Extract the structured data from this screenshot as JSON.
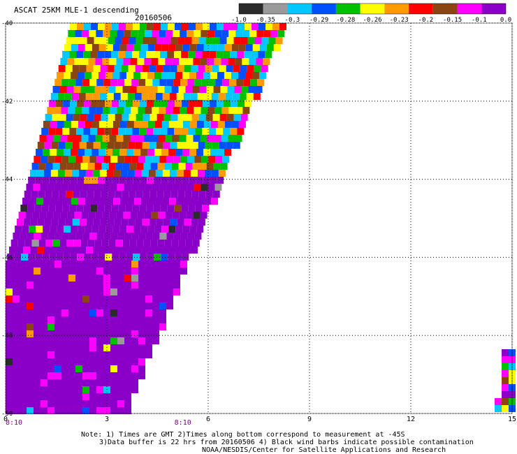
{
  "chart_data": {
    "type": "heatmap",
    "title": "ASCAT 25KM MLE-1 descending",
    "subtitle": "20160506",
    "xlim": [
      0,
      15
    ],
    "ylim": [
      -50,
      -40
    ],
    "x_ticks": [
      "0",
      "3",
      "6",
      "9",
      "12",
      "15"
    ],
    "y_ticks": [
      "-40",
      "-42",
      "-44",
      "-46",
      "-48",
      "-50"
    ],
    "grid": true,
    "legend": {
      "placement": "top",
      "bins": [
        "-1.0",
        "-0.35",
        "-0.3",
        "-0.29",
        "-0.28",
        "-0.26",
        "-0.23",
        "-0.2",
        "-0.15",
        "-0.1",
        "0.0"
      ],
      "colors": [
        "#2b2b2b",
        "#9a9a9a",
        "#00c8ff",
        "#0050ff",
        "#00c000",
        "#ffff00",
        "#ff9a00",
        "#ff0000",
        "#8b4513",
        "#ff00ff",
        "#8b00c8"
      ]
    },
    "time_labels": [
      {
        "x": 0,
        "text": "8:10"
      },
      {
        "x": 5,
        "text": "8:10"
      }
    ]
  },
  "notes": [
    "Note: 1) Times are GMT 2)Times along bottom correspond to measurement at -45S",
    "3)Data buffer is 22 hrs from 20160506 4) Black wind barbs indicate possible contamination",
    "NOAA/NESDIS/Center for Satellite Applications and Research"
  ]
}
